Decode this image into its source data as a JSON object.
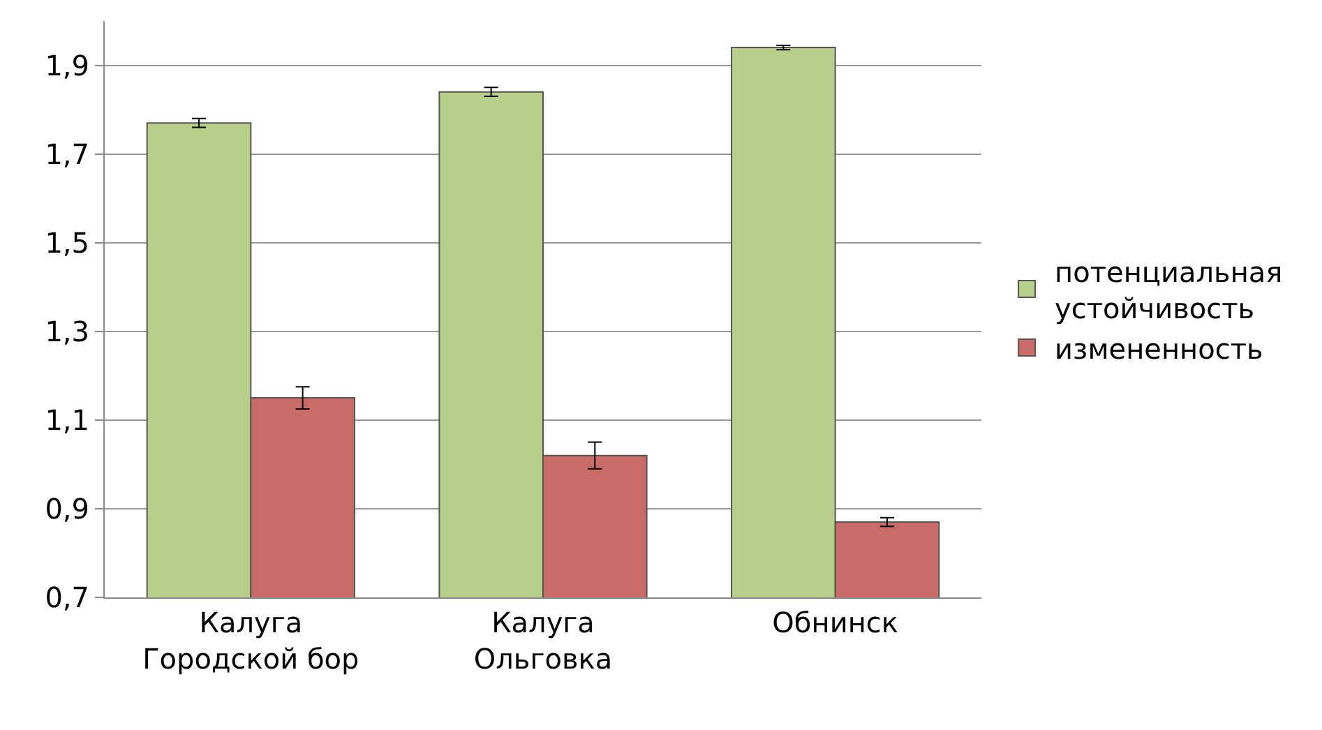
{
  "chart_data": {
    "type": "bar",
    "categories": [
      "Калуга\nГородской бор",
      "Калуга\nОльговка",
      "Обнинск"
    ],
    "series": [
      {
        "name": "потенциальная\nустойчивость",
        "color": "#b7cf8a",
        "values": [
          1.77,
          1.84,
          1.94
        ],
        "errors": [
          0.01,
          0.01,
          0.005
        ]
      },
      {
        "name": "измененность",
        "color": "#c96b66",
        "values": [
          1.15,
          1.02,
          0.87
        ],
        "errors": [
          0.025,
          0.03,
          0.01
        ]
      }
    ],
    "ylim": [
      0.7,
      2.0
    ],
    "yticks": [
      {
        "value": 0.7,
        "label": "0,7"
      },
      {
        "value": 0.9,
        "label": "0,9"
      },
      {
        "value": 1.1,
        "label": "1,1"
      },
      {
        "value": 1.3,
        "label": "1,3"
      },
      {
        "value": 1.5,
        "label": "1,5"
      },
      {
        "value": 1.7,
        "label": "1,7"
      },
      {
        "value": 1.9,
        "label": "1,9"
      }
    ],
    "grid": "y",
    "legend": "right"
  }
}
